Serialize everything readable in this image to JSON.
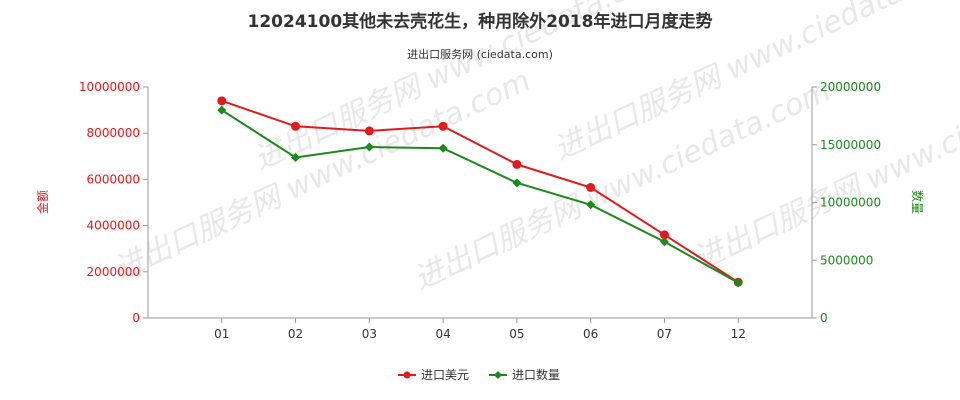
{
  "colors": {
    "left_axis": "#e31a1c",
    "right_axis": "#1a8a1a",
    "series_amount": "#e31a1c",
    "series_quantity": "#1a8a1a",
    "axis_line": "#999999",
    "grid": "#cccccc"
  },
  "watermark_text": "进出口服务网 www.ciedata.com",
  "chart_data": {
    "type": "line",
    "title": "12024100其他未去壳花生，种用除外2018年进口月度走势",
    "subtitle": "进出口服务网 (ciedata.com)",
    "categories": [
      "01",
      "02",
      "03",
      "04",
      "05",
      "06",
      "07",
      "12"
    ],
    "y_left": {
      "label": "金额",
      "range": [
        0,
        10000000
      ],
      "ticks": [
        "0",
        "2000000",
        "4000000",
        "6000000",
        "8000000",
        "10000000"
      ]
    },
    "y_right": {
      "label": "数量",
      "range": [
        0,
        20000000
      ],
      "ticks": [
        "0",
        "5000000",
        "10000000",
        "15000000",
        "20000000"
      ]
    },
    "series": [
      {
        "name": "进口美元",
        "axis": "left",
        "marker": "circle",
        "values": [
          9400000,
          8300000,
          8100000,
          8300000,
          6650000,
          5650000,
          3600000,
          1550000
        ]
      },
      {
        "name": "进口数量",
        "axis": "right",
        "marker": "diamond",
        "values": [
          18000000,
          13900000,
          14800000,
          14700000,
          11700000,
          9800000,
          6600000,
          3050000
        ]
      }
    ],
    "grid": false,
    "legend_position": "bottom-center"
  }
}
